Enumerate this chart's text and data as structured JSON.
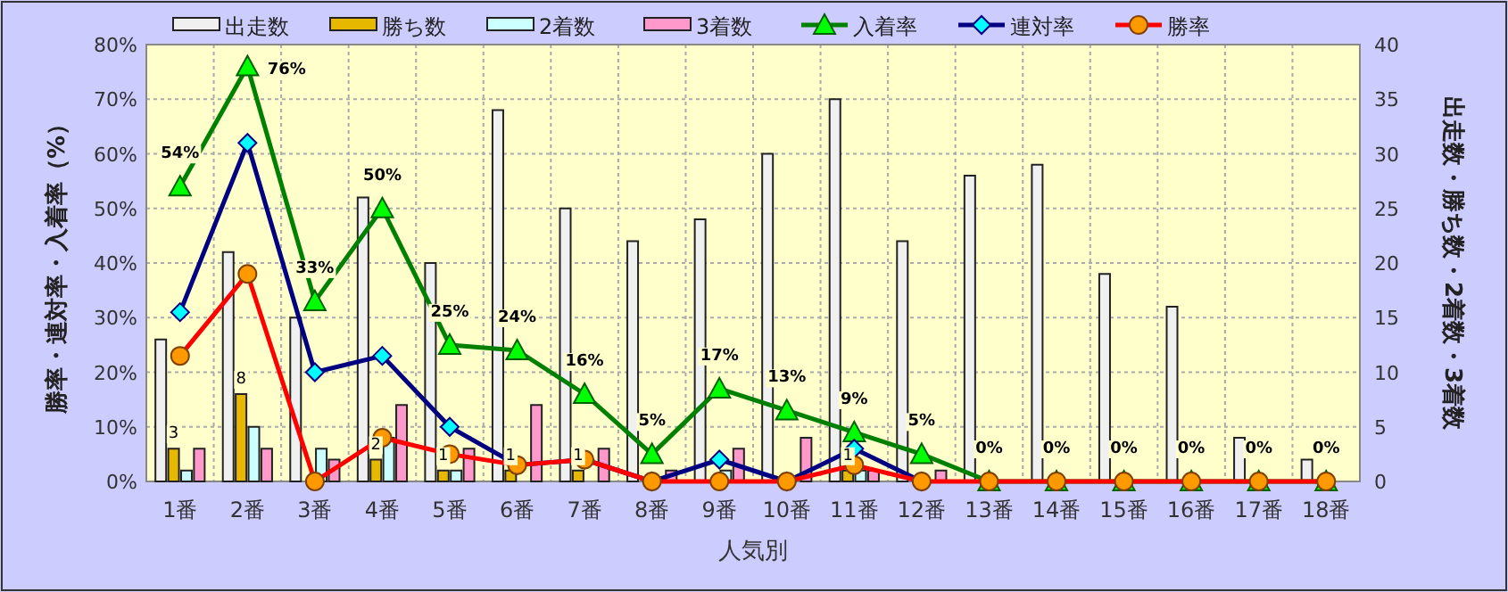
{
  "chart_data": {
    "type": "bar",
    "categories": [
      "1番",
      "2番",
      "3番",
      "4番",
      "5番",
      "6番",
      "7番",
      "8番",
      "9番",
      "10番",
      "11番",
      "12番",
      "13番",
      "14番",
      "15番",
      "16番",
      "17番",
      "18番"
    ],
    "series": [
      {
        "name": "出走数",
        "axis": "y2",
        "color": "#f0f0f0",
        "values": [
          13,
          21,
          15,
          26,
          20,
          34,
          25,
          22,
          24,
          30,
          35,
          22,
          28,
          29,
          19,
          16,
          4,
          2
        ]
      },
      {
        "name": "勝ち数",
        "axis": "y2",
        "color": "#e6b800",
        "values": [
          3,
          8,
          0,
          2,
          1,
          1,
          1,
          0,
          0,
          0,
          1,
          0,
          0,
          0,
          0,
          0,
          0,
          0
        ],
        "value_labels": [
          "3",
          "8",
          null,
          "2",
          "1",
          "1",
          "1",
          null,
          null,
          null,
          "1",
          null,
          null,
          null,
          null,
          null,
          null,
          null
        ]
      },
      {
        "name": "2着数",
        "axis": "y2",
        "color": "#ccffff",
        "values": [
          1,
          5,
          3,
          4,
          1,
          0,
          0,
          0,
          1,
          0,
          1,
          0,
          0,
          0,
          0,
          0,
          0,
          0
        ]
      },
      {
        "name": "3着数",
        "axis": "y2",
        "color": "#ff99cc",
        "values": [
          3,
          3,
          2,
          7,
          3,
          7,
          3,
          1,
          3,
          4,
          1,
          1,
          0,
          0,
          0,
          0,
          0,
          0
        ]
      },
      {
        "name": "入着率",
        "type": "line",
        "axis": "y",
        "marker": "triangle",
        "color": "#008000",
        "values": [
          54,
          76,
          33,
          50,
          25,
          24,
          16,
          5,
          17,
          13,
          9,
          5,
          0,
          0,
          0,
          0,
          0,
          0
        ],
        "value_labels": [
          "54%",
          "76%",
          "33%",
          "50%",
          "25%",
          "24%",
          "16%",
          "5%",
          "17%",
          "13%",
          "9%",
          "5%",
          "0%",
          "0%",
          "0%",
          "0%",
          "0%",
          "0%"
        ]
      },
      {
        "name": "連対率",
        "type": "line",
        "axis": "y",
        "marker": "diamond",
        "color": "#000080",
        "values": [
          31,
          62,
          20,
          23,
          10,
          3,
          4,
          0,
          4,
          0,
          6,
          0,
          null,
          null,
          null,
          null,
          null,
          null
        ]
      },
      {
        "name": "勝率",
        "type": "line",
        "axis": "y",
        "marker": "circle",
        "color": "#ff0000",
        "values": [
          23,
          38,
          0,
          8,
          5,
          3,
          4,
          0,
          0,
          0,
          3,
          0,
          0,
          0,
          0,
          0,
          0,
          0
        ]
      }
    ],
    "xlabel": "人気別",
    "ylabel": "勝率・連対率・入着率（%）",
    "y2label": "出走数・勝ち数・2着数・3着数",
    "ylim": [
      0,
      80
    ],
    "yticks": [
      {
        "value": 0,
        "label": "0%"
      },
      {
        "value": 10,
        "label": "10%"
      },
      {
        "value": 20,
        "label": "20%"
      },
      {
        "value": 30,
        "label": "30%"
      },
      {
        "value": 40,
        "label": "40%"
      },
      {
        "value": 50,
        "label": "50%"
      },
      {
        "value": 60,
        "label": "60%"
      },
      {
        "value": 70,
        "label": "70%"
      },
      {
        "value": 80,
        "label": "80%"
      }
    ],
    "y2lim": [
      0,
      40
    ],
    "y2ticks": [
      0,
      5,
      10,
      15,
      20,
      25,
      30,
      35,
      40
    ],
    "grid": true,
    "legend": "top",
    "line_style": "solid"
  }
}
